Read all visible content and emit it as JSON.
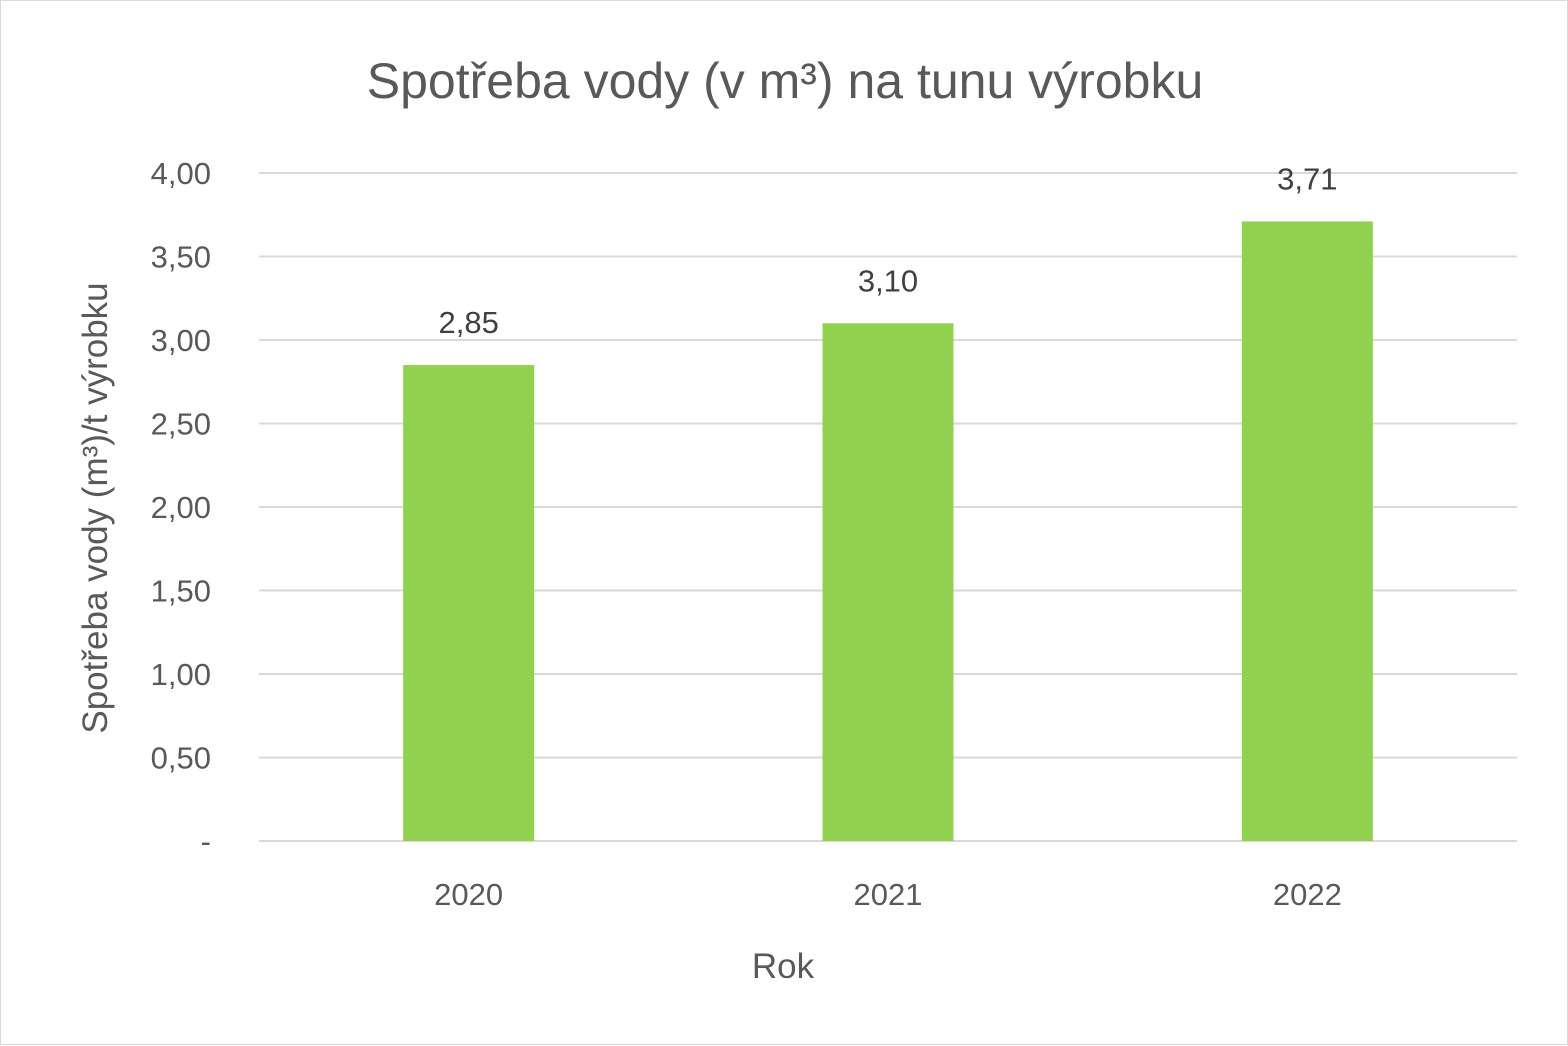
{
  "chart_data": {
    "type": "bar",
    "title": "Spotřeba vody (v m³) na tunu výrobku",
    "xlabel": "Rok",
    "ylabel": "Spotřeba vody (m³)/t výrobku",
    "categories": [
      "2020",
      "2021",
      "2022"
    ],
    "values": [
      2.85,
      3.1,
      3.71
    ],
    "data_labels": [
      "2,85",
      "3,10",
      "3,71"
    ],
    "ylim": [
      0,
      4
    ],
    "yticks": [
      0,
      0.5,
      1,
      1.5,
      2,
      2.5,
      3,
      3.5,
      4
    ],
    "ytick_labels": [
      "-",
      "0,50",
      "1,00",
      "1,50",
      "2,00",
      "2,50",
      "3,00",
      "3,50",
      "4,00"
    ],
    "grid": true,
    "legend": "none",
    "bar_color": "#92d050",
    "grid_color": "#d9d9d9"
  }
}
